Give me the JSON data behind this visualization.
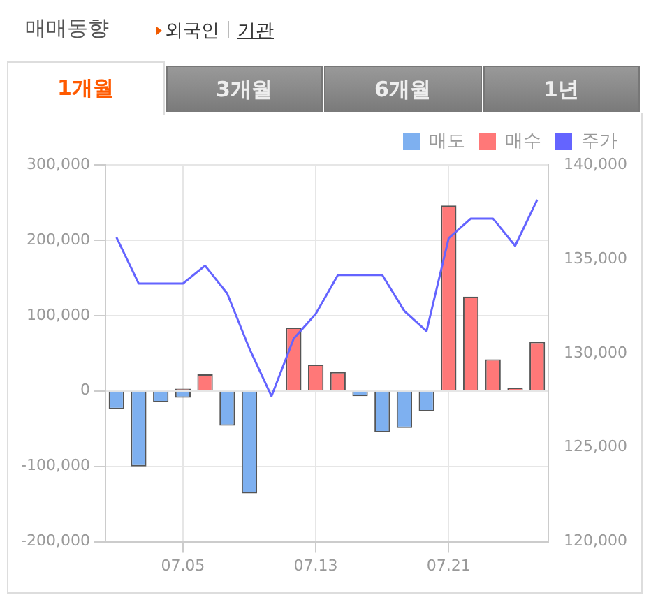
{
  "chart_data": {
    "type": "bar",
    "title": "매매동향",
    "annotations": [
      "외국인",
      "기관",
      "1개월",
      "3개월",
      "6개월",
      "1년"
    ],
    "categories": [
      null,
      null,
      null,
      "07.05",
      null,
      null,
      null,
      null,
      null,
      "07.13",
      null,
      null,
      null,
      null,
      null,
      "07.21",
      null,
      null,
      null,
      null
    ],
    "series": [
      {
        "name": "매도",
        "color": "#7eb0f0",
        "values": [
          -24000,
          -100000,
          -15000,
          -9000,
          0,
          -46000,
          -136000,
          0,
          0,
          0,
          0,
          -7000,
          -55000,
          -49000,
          -27000,
          0,
          0,
          0,
          0,
          0
        ]
      },
      {
        "name": "매수",
        "color": "#ff7878",
        "values": [
          0,
          0,
          0,
          3000,
          22000,
          0,
          0,
          0,
          84000,
          35000,
          25000,
          0,
          0,
          0,
          0,
          246000,
          125000,
          42000,
          4000,
          65000
        ]
      },
      {
        "name": "주가",
        "type": "line",
        "axis": "y2",
        "color": "#6464ff",
        "values": [
          136150,
          133700,
          133700,
          133700,
          134650,
          133170,
          130250,
          127720,
          130770,
          132100,
          134150,
          134150,
          134150,
          132240,
          131170,
          136100,
          137150,
          137150,
          135700,
          138150
        ]
      }
    ],
    "ylim": [
      -200000,
      300000
    ],
    "yticks": [
      {
        "value": -200000,
        "label": "-200,000"
      },
      {
        "value": -100000,
        "label": "-100,000"
      },
      {
        "value": 0,
        "label": "0"
      },
      {
        "value": 100000,
        "label": "100,000"
      },
      {
        "value": 200000,
        "label": "200,000"
      },
      {
        "value": 300000,
        "label": "300,000"
      }
    ],
    "y2lim": [
      120000,
      140000
    ],
    "y2ticks": [
      {
        "value": 120000,
        "label": "120,000"
      },
      {
        "value": 125000,
        "label": "125,000"
      },
      {
        "value": 130000,
        "label": "130,000"
      },
      {
        "value": 135000,
        "label": "135,000"
      },
      {
        "value": 140000,
        "label": "140,000"
      }
    ],
    "grid": true,
    "legend": "top right",
    "marker": "none",
    "line_style": "solid"
  }
}
